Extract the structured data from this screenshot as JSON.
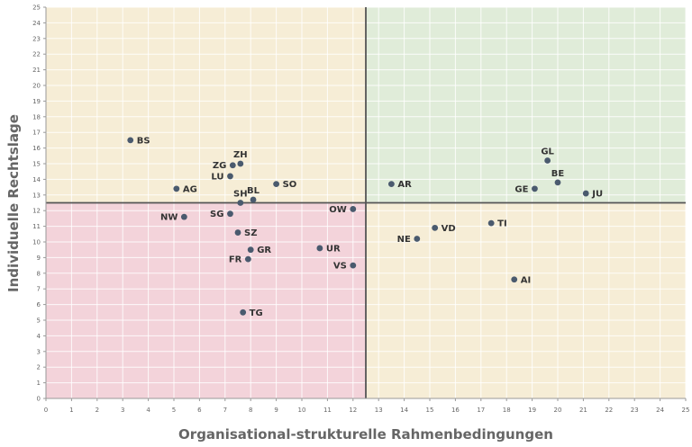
{
  "chart_data": {
    "type": "scatter",
    "xlabel": "Organisational-strukturelle Rahmenbedingungen",
    "ylabel": "Individuelle Rechtslage",
    "xlim": [
      0,
      25
    ],
    "ylim": [
      0,
      25
    ],
    "xticks": [
      "0",
      "1",
      "2",
      "3",
      "4",
      "5",
      "6",
      "7",
      "8",
      "9",
      "10",
      "11",
      "12",
      "13",
      "14",
      "15",
      "16",
      "17",
      "18",
      "19",
      "20",
      "21",
      "22",
      "23",
      "24",
      "25"
    ],
    "yticks": [
      "0",
      "1",
      "2",
      "3",
      "4",
      "5",
      "6",
      "7",
      "8",
      "9",
      "10",
      "11",
      "12",
      "13",
      "14",
      "15",
      "16",
      "17",
      "18",
      "19",
      "20",
      "21",
      "22",
      "23",
      "24",
      "25"
    ],
    "grid": true,
    "divider": {
      "x": 12.5,
      "y": 12.5
    },
    "quadrant_colors": {
      "top_left": "#f6edd6",
      "top_right": "#e0ecd9",
      "bottom_left": "#f3d3da",
      "bottom_right": "#f6edd6"
    },
    "point_color": "#4a5a6e",
    "points": [
      {
        "label": "BS",
        "x": 3.3,
        "y": 16.5,
        "pos": "right"
      },
      {
        "label": "ZH",
        "x": 7.6,
        "y": 15.0,
        "pos": "above"
      },
      {
        "label": "ZG",
        "x": 7.3,
        "y": 14.9,
        "pos": "left"
      },
      {
        "label": "LU",
        "x": 7.2,
        "y": 14.2,
        "pos": "left"
      },
      {
        "label": "SO",
        "x": 9.0,
        "y": 13.7,
        "pos": "right"
      },
      {
        "label": "AG",
        "x": 5.1,
        "y": 13.4,
        "pos": "right"
      },
      {
        "label": "BL",
        "x": 8.1,
        "y": 12.7,
        "pos": "above"
      },
      {
        "label": "SH",
        "x": 7.6,
        "y": 12.5,
        "pos": "above"
      },
      {
        "label": "SG",
        "x": 7.2,
        "y": 11.8,
        "pos": "left"
      },
      {
        "label": "NW",
        "x": 5.4,
        "y": 11.6,
        "pos": "left"
      },
      {
        "label": "SZ",
        "x": 7.5,
        "y": 10.6,
        "pos": "right"
      },
      {
        "label": "GR",
        "x": 8.0,
        "y": 9.5,
        "pos": "right"
      },
      {
        "label": "FR",
        "x": 7.9,
        "y": 8.9,
        "pos": "left"
      },
      {
        "label": "TG",
        "x": 7.7,
        "y": 5.5,
        "pos": "right"
      },
      {
        "label": "UR",
        "x": 10.7,
        "y": 9.6,
        "pos": "right"
      },
      {
        "label": "VS",
        "x": 12.0,
        "y": 8.5,
        "pos": "left"
      },
      {
        "label": "OW",
        "x": 12.0,
        "y": 12.1,
        "pos": "left"
      },
      {
        "label": "AR",
        "x": 13.5,
        "y": 13.7,
        "pos": "right"
      },
      {
        "label": "NE",
        "x": 14.5,
        "y": 10.2,
        "pos": "left"
      },
      {
        "label": "VD",
        "x": 15.2,
        "y": 10.9,
        "pos": "right"
      },
      {
        "label": "TI",
        "x": 17.4,
        "y": 11.2,
        "pos": "right"
      },
      {
        "label": "AI",
        "x": 18.3,
        "y": 7.6,
        "pos": "right"
      },
      {
        "label": "GL",
        "x": 19.6,
        "y": 15.2,
        "pos": "above"
      },
      {
        "label": "BE",
        "x": 20.0,
        "y": 13.8,
        "pos": "above"
      },
      {
        "label": "GE",
        "x": 19.1,
        "y": 13.4,
        "pos": "left"
      },
      {
        "label": "JU",
        "x": 21.1,
        "y": 13.1,
        "pos": "right"
      }
    ]
  }
}
